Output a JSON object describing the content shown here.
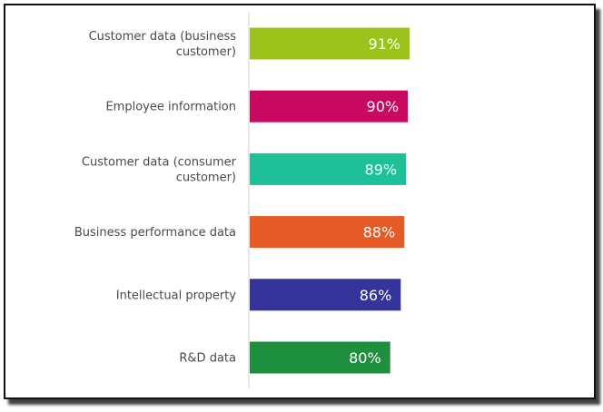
{
  "chart_data": {
    "type": "bar",
    "orientation": "horizontal",
    "categories": [
      "Customer data (business customer)",
      "Employee information",
      "Customer data (consumer customer)",
      "Business performance data",
      "Intellectual property",
      "R&D data"
    ],
    "category_label_lines": [
      [
        "Customer data (business",
        "customer)"
      ],
      [
        "Employee information"
      ],
      [
        "Customer data (consumer",
        "customer)"
      ],
      [
        "Business performance data"
      ],
      [
        "Intellectual property"
      ],
      [
        "R&D data"
      ]
    ],
    "values": [
      91,
      90,
      89,
      88,
      86,
      80
    ],
    "value_labels": [
      "91%",
      "90%",
      "89%",
      "88%",
      "86%",
      "80%"
    ],
    "colors": [
      "#9bc31c",
      "#c8095f",
      "#1ec197",
      "#e55a25",
      "#34349a",
      "#1e8f3c"
    ],
    "title": "",
    "xlabel": "",
    "ylabel": "",
    "grid": false,
    "legend": "none"
  }
}
